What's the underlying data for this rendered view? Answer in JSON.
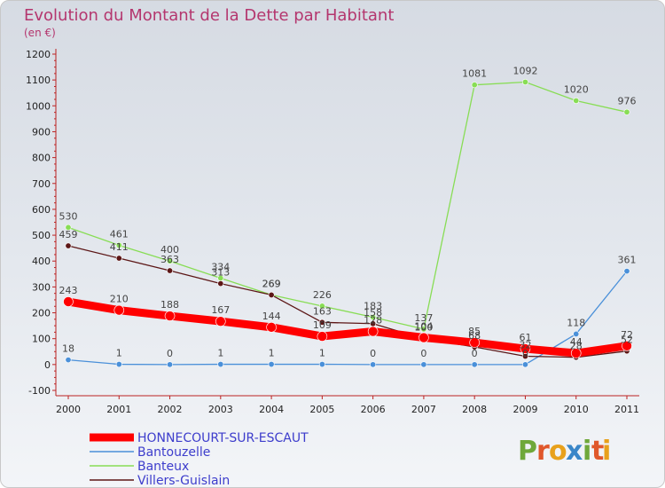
{
  "chart_data": {
    "type": "line",
    "title": "Evolution du Montant de la Dette par Habitant",
    "subtitle": "(en €)",
    "xlabel": "",
    "ylabel": "",
    "x": [
      "2000",
      "2001",
      "2002",
      "2003",
      "2004",
      "2005",
      "2006",
      "2007",
      "2008",
      "2009",
      "2010",
      "2011"
    ],
    "ylim": [
      -100,
      1200
    ],
    "yticks": [
      -100,
      0,
      100,
      200,
      300,
      400,
      500,
      600,
      700,
      800,
      900,
      1000,
      1100,
      1200
    ],
    "grid": false,
    "legend_position": "bottom-left",
    "series": [
      {
        "name": "HONNECOURT-SUR-ESCAUT",
        "color": "#ff0000",
        "emphasis": true,
        "values": [
          243,
          210,
          188,
          167,
          144,
          109,
          128,
          104,
          85,
          61,
          44,
          72
        ],
        "labels": [
          "243",
          "210",
          "188",
          "167",
          "144",
          "109",
          "128",
          "104",
          "85",
          "61",
          "44",
          "72"
        ]
      },
      {
        "name": "Bantouzelle",
        "color": "#4a90d9",
        "values": [
          18,
          1,
          0,
          1,
          1,
          1,
          0,
          0,
          0,
          0,
          118,
          361
        ],
        "labels": [
          "18",
          "1",
          "0",
          "1",
          "1",
          "1",
          "0",
          "0",
          "0",
          "0",
          "118",
          "361"
        ]
      },
      {
        "name": "Banteux",
        "color": "#88dd55",
        "values": [
          530,
          461,
          400,
          334,
          269,
          226,
          183,
          137,
          1081,
          1092,
          1020,
          976
        ],
        "labels": [
          "530",
          "461",
          "400",
          "334",
          "269",
          "226",
          "183",
          "137",
          "1081",
          "1092",
          "1020",
          "976"
        ]
      },
      {
        "name": "Villers-Guislain",
        "color": "#5c1616",
        "values": [
          459,
          411,
          363,
          313,
          269,
          163,
          158,
          100,
          68,
          32,
          28,
          52
        ],
        "labels": [
          "459",
          "411",
          "363",
          "313",
          "269",
          "163",
          "158",
          "100",
          "68",
          "32",
          "28",
          "52"
        ]
      }
    ]
  },
  "logo": {
    "text": "Proxiti",
    "letters": [
      "P",
      "r",
      "o",
      "x",
      "i",
      "t",
      "i"
    ],
    "colors": [
      "#6fa83a",
      "#e0572b",
      "#e8a11c",
      "#3a86c8",
      "#6fa83a",
      "#e0572b",
      "#e8a11c"
    ]
  }
}
